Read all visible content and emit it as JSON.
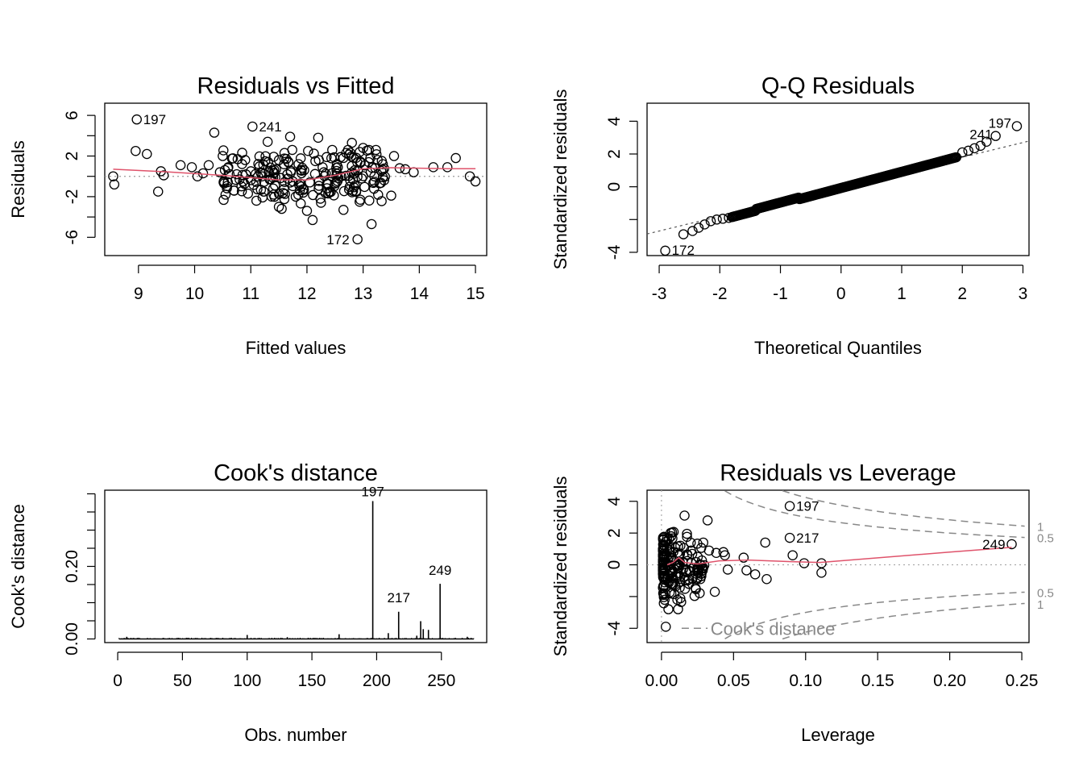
{
  "chart_data": [
    {
      "type": "scatter",
      "title": "Residuals vs Fitted",
      "xlabel": "Fitted values",
      "ylabel": "Residuals",
      "xlim": [
        8.4,
        15.2
      ],
      "ylim": [
        -7.8,
        7.2
      ],
      "xticks": [
        "9",
        "10",
        "11",
        "12",
        "13",
        "14",
        "15"
      ],
      "yticks": [
        "-6",
        "-2",
        "2",
        "6"
      ],
      "reference_line_y": 0,
      "point_labels": [
        {
          "text": "197",
          "x": 8.97,
          "y": 5.6
        },
        {
          "text": "241",
          "x": 11.03,
          "y": 4.9
        },
        {
          "text": "172",
          "x": 12.9,
          "y": -6.2
        }
      ],
      "smooth": [
        [
          8.55,
          0.7
        ],
        [
          9.5,
          0.45
        ],
        [
          10.5,
          0.1
        ],
        [
          11.5,
          -0.35
        ],
        [
          12.0,
          -0.35
        ],
        [
          12.5,
          0.1
        ],
        [
          13.0,
          0.75
        ],
        [
          13.5,
          0.85
        ],
        [
          14.5,
          0.75
        ],
        [
          15.0,
          0.75
        ]
      ],
      "points": [
        [
          8.97,
          5.6
        ],
        [
          11.03,
          4.9
        ],
        [
          12.9,
          -6.2
        ],
        [
          8.55,
          0.0
        ],
        [
          8.57,
          -0.8
        ],
        [
          8.95,
          2.5
        ],
        [
          9.15,
          2.2
        ],
        [
          9.35,
          -1.5
        ],
        [
          9.4,
          0.5
        ],
        [
          9.45,
          0.1
        ],
        [
          9.75,
          1.1
        ],
        [
          9.95,
          0.9
        ],
        [
          10.05,
          0.0
        ],
        [
          10.15,
          0.3
        ],
        [
          10.25,
          1.1
        ],
        [
          10.35,
          4.3
        ],
        [
          10.45,
          0.4
        ],
        [
          10.5,
          2.0
        ],
        [
          10.55,
          -1.8
        ],
        [
          10.6,
          0.9
        ],
        [
          10.7,
          -1.4
        ],
        [
          10.8,
          -0.3
        ],
        [
          10.9,
          1.6
        ],
        [
          10.95,
          -1.7
        ],
        [
          11.0,
          0.5
        ],
        [
          11.1,
          -2.4
        ],
        [
          11.2,
          0.0
        ],
        [
          11.3,
          3.4
        ],
        [
          11.4,
          -1.2
        ],
        [
          11.45,
          0.7
        ],
        [
          11.5,
          1.6
        ],
        [
          11.55,
          -3.2
        ],
        [
          11.6,
          2.3
        ],
        [
          11.65,
          0.2
        ],
        [
          11.7,
          3.9
        ],
        [
          11.75,
          -0.5
        ],
        [
          11.8,
          -2.0
        ],
        [
          11.85,
          1.2
        ],
        [
          11.9,
          -1.0
        ],
        [
          11.95,
          0.6
        ],
        [
          12.0,
          -3.4
        ],
        [
          12.02,
          2.5
        ],
        [
          12.05,
          -0.6
        ],
        [
          12.1,
          -4.3
        ],
        [
          12.15,
          1.5
        ],
        [
          12.2,
          3.8
        ],
        [
          12.25,
          -2.6
        ],
        [
          12.3,
          0.4
        ],
        [
          12.35,
          1.9
        ],
        [
          12.4,
          -1.5
        ],
        [
          12.45,
          2.6
        ],
        [
          12.5,
          -0.7
        ],
        [
          12.55,
          0.9
        ],
        [
          12.6,
          1.9
        ],
        [
          12.65,
          -3.3
        ],
        [
          12.7,
          2.3
        ],
        [
          12.75,
          -1.3
        ],
        [
          12.8,
          3.3
        ],
        [
          12.85,
          0.6
        ],
        [
          12.95,
          -2.3
        ],
        [
          13.0,
          2.8
        ],
        [
          13.1,
          1.4
        ],
        [
          13.15,
          -4.7
        ],
        [
          13.2,
          0.0
        ],
        [
          13.35,
          1.2
        ],
        [
          13.5,
          -1.9
        ],
        [
          13.55,
          2.0
        ],
        [
          13.65,
          0.8
        ],
        [
          13.75,
          0.7
        ],
        [
          13.9,
          0.4
        ],
        [
          14.25,
          0.9
        ],
        [
          14.5,
          0.9
        ],
        [
          14.65,
          1.8
        ],
        [
          14.9,
          0.0
        ],
        [
          15.0,
          -0.5
        ]
      ],
      "dense_cluster": {
        "x_range": [
          10.5,
          13.4
        ],
        "y_range": [
          -3.0,
          2.6
        ],
        "count": 180
      }
    },
    {
      "type": "scatter",
      "title": "Q-Q Residuals",
      "xlabel": "Theoretical Quantiles",
      "ylabel": "Standardized residuals",
      "xlim": [
        -3.2,
        3.1
      ],
      "ylim": [
        -4.2,
        5.1
      ],
      "xticks": [
        "-3",
        "-2",
        "-1",
        "0",
        "1",
        "2",
        "3"
      ],
      "yticks": [
        "-4",
        "0",
        "2",
        "4"
      ],
      "reference_line": {
        "slope": 0.9,
        "intercept": 0.0
      },
      "point_labels": [
        {
          "text": "197",
          "x": 2.9,
          "y": 3.7
        },
        {
          "text": "241",
          "x": 2.55,
          "y": 3.1
        },
        {
          "text": "172",
          "x": -2.9,
          "y": -3.9
        }
      ],
      "points": [
        [
          -2.9,
          -3.9
        ],
        [
          -2.6,
          -2.9
        ],
        [
          -2.45,
          -2.7
        ],
        [
          -2.35,
          -2.5
        ],
        [
          -2.25,
          -2.3
        ],
        [
          -2.15,
          -2.1
        ],
        [
          -2.05,
          -2.0
        ],
        [
          -1.95,
          -1.95
        ],
        [
          -1.85,
          -1.9
        ],
        [
          2.0,
          2.1
        ],
        [
          2.1,
          2.2
        ],
        [
          2.2,
          2.35
        ],
        [
          2.3,
          2.5
        ],
        [
          2.4,
          2.75
        ],
        [
          2.55,
          3.1
        ],
        [
          2.9,
          3.7
        ]
      ],
      "main_band": {
        "x_from": -1.8,
        "x_to": 1.9,
        "y_from": -1.85,
        "y_to": 1.8
      }
    },
    {
      "type": "bar",
      "title": "Cook's distance",
      "xlabel": "Obs. number",
      "ylabel": "Cook's distance",
      "xlim": [
        -10,
        285
      ],
      "ylim": [
        -0.01,
        0.41
      ],
      "xticks": [
        "0",
        "50",
        "100",
        "150",
        "200",
        "250"
      ],
      "yticks": [
        "0.00",
        "0.20"
      ],
      "point_labels": [
        {
          "text": "197",
          "x": 197,
          "y": 0.38
        },
        {
          "text": "217",
          "x": 217,
          "y": 0.075
        },
        {
          "text": "249",
          "x": 249,
          "y": 0.15
        }
      ],
      "spikes": [
        [
          7,
          0.006
        ],
        [
          100,
          0.011
        ],
        [
          131,
          0.005
        ],
        [
          171,
          0.013
        ],
        [
          197,
          0.38
        ],
        [
          209,
          0.016
        ],
        [
          217,
          0.075
        ],
        [
          231,
          0.009
        ],
        [
          234,
          0.049
        ],
        [
          236,
          0.027
        ],
        [
          240,
          0.025
        ],
        [
          249,
          0.152
        ],
        [
          270,
          0.006
        ]
      ]
    },
    {
      "type": "scatter",
      "title": "Residuals vs Leverage",
      "xlabel": "Leverage",
      "ylabel": "Standardized residuals",
      "xlim": [
        -0.01,
        0.255
      ],
      "ylim": [
        -4.9,
        4.7
      ],
      "xticks": [
        "0.00",
        "0.05",
        "0.10",
        "0.15",
        "0.20",
        "0.25"
      ],
      "yticks": [
        "-4",
        "0",
        "2",
        "4"
      ],
      "contour_labels": [
        "1",
        "0.5",
        "0.5",
        "1"
      ],
      "legend": "Cook's distance",
      "point_labels": [
        {
          "text": "197",
          "x": 0.089,
          "y": 3.7
        },
        {
          "text": "217",
          "x": 0.089,
          "y": 1.7
        },
        {
          "text": "249",
          "x": 0.243,
          "y": 1.3
        }
      ],
      "smooth": [
        [
          0.004,
          0.0
        ],
        [
          0.008,
          0.15
        ],
        [
          0.012,
          0.45
        ],
        [
          0.016,
          0.15
        ],
        [
          0.025,
          0.05
        ],
        [
          0.04,
          0.25
        ],
        [
          0.06,
          0.3
        ],
        [
          0.09,
          0.2
        ],
        [
          0.11,
          0.15
        ],
        [
          0.2,
          0.8
        ],
        [
          0.243,
          1.1
        ]
      ],
      "points": [
        [
          0.089,
          3.7
        ],
        [
          0.089,
          1.7
        ],
        [
          0.243,
          1.3
        ],
        [
          0.003,
          -3.9
        ],
        [
          0.016,
          3.1
        ],
        [
          0.032,
          2.8
        ],
        [
          0.029,
          1.4
        ],
        [
          0.033,
          0.9
        ],
        [
          0.038,
          0.75
        ],
        [
          0.043,
          0.8
        ],
        [
          0.044,
          0.6
        ],
        [
          0.046,
          -0.3
        ],
        [
          0.057,
          0.45
        ],
        [
          0.059,
          -0.35
        ],
        [
          0.065,
          -0.6
        ],
        [
          0.072,
          1.4
        ],
        [
          0.073,
          -0.9
        ],
        [
          0.091,
          0.6
        ],
        [
          0.099,
          0.1
        ],
        [
          0.111,
          0.1
        ],
        [
          0.111,
          -0.5
        ],
        [
          0.027,
          -0.9
        ],
        [
          0.037,
          -1.7
        ],
        [
          0.019,
          -1.2
        ],
        [
          0.011,
          -2.2
        ]
      ],
      "dense_cluster": {
        "x_range": [
          0.001,
          0.03
        ],
        "y_range": [
          -2.8,
          2.6
        ],
        "count": 180
      }
    }
  ]
}
